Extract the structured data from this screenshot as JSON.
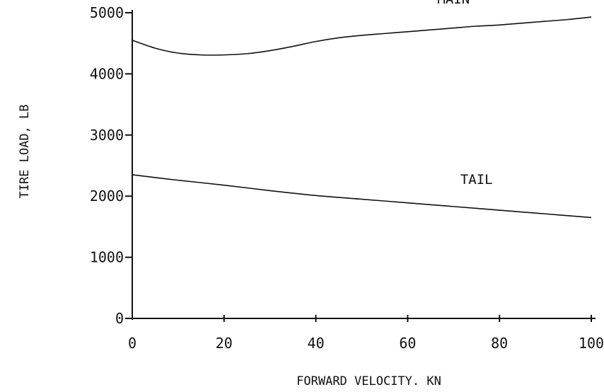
{
  "chart_data": {
    "type": "line",
    "title": "",
    "xlabel": "FORWARD VELOCITY. KN",
    "ylabel": "TIRE LOAD, LB",
    "xlim": [
      0,
      100
    ],
    "ylim": [
      0,
      5000
    ],
    "x_ticks": [
      "0",
      "20",
      "40",
      "60",
      "80",
      "100"
    ],
    "y_ticks": [
      "0",
      "1000",
      "2000",
      "3000",
      "4000",
      "5000"
    ],
    "grid": false,
    "legend": "none",
    "series": [
      {
        "name": "MAIN",
        "x": [
          0,
          5,
          10,
          15,
          20,
          25,
          30,
          35,
          40,
          45,
          50,
          55,
          60,
          65,
          70,
          75,
          80,
          85,
          90,
          95,
          100
        ],
        "values": [
          4550,
          4420,
          4340,
          4310,
          4310,
          4330,
          4380,
          4450,
          4530,
          4590,
          4630,
          4660,
          4690,
          4720,
          4750,
          4780,
          4800,
          4830,
          4860,
          4890,
          4930
        ]
      },
      {
        "name": "TAIL",
        "x": [
          0,
          10,
          20,
          30,
          40,
          50,
          60,
          70,
          80,
          90,
          100
        ],
        "values": [
          2350,
          2260,
          2180,
          2090,
          2010,
          1950,
          1890,
          1830,
          1770,
          1710,
          1650
        ]
      }
    ]
  }
}
